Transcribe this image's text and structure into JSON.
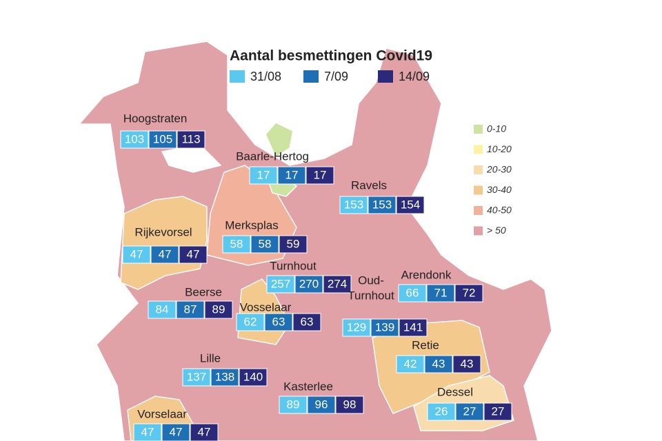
{
  "title": "Aantal besmettingen Covid19",
  "periods": [
    {
      "label": "31/08",
      "color": "#5bc8ef"
    },
    {
      "label": "7/09",
      "color": "#1f6fb5"
    },
    {
      "label": "14/09",
      "color": "#2b2a7a"
    }
  ],
  "classes": [
    {
      "label": "0-10",
      "color": "#cde3a1"
    },
    {
      "label": "10-20",
      "color": "#fcf3a0"
    },
    {
      "label": "20-30",
      "color": "#f9dcad"
    },
    {
      "label": "30-40",
      "color": "#f4c98e"
    },
    {
      "label": "40-50",
      "color": "#f1b19b"
    },
    {
      "label": "> 50",
      "color": "#e0a1a7"
    }
  ],
  "municipalities": [
    {
      "name_lines": [
        "Hoogstraten"
      ],
      "values": [
        103,
        105,
        113
      ]
    },
    {
      "name_lines": [
        "Baarle-Hertog"
      ],
      "values": [
        17,
        17,
        17
      ]
    },
    {
      "name_lines": [
        "Ravels"
      ],
      "values": [
        153,
        153,
        154
      ]
    },
    {
      "name_lines": [
        "Merksplas"
      ],
      "values": [
        58,
        58,
        59
      ]
    },
    {
      "name_lines": [
        "Rijkevorsel"
      ],
      "values": [
        47,
        47,
        47
      ]
    },
    {
      "name_lines": [
        "Turnhout"
      ],
      "values": [
        257,
        270,
        274
      ]
    },
    {
      "name_lines": [
        "Arendonk"
      ],
      "values": [
        66,
        71,
        72
      ]
    },
    {
      "name_lines": [
        "Beerse"
      ],
      "values": [
        84,
        87,
        89
      ]
    },
    {
      "name_lines": [
        "Vosselaar"
      ],
      "values": [
        62,
        63,
        63
      ]
    },
    {
      "name_lines": [
        "Oud-",
        "Turnhout"
      ],
      "values": [
        129,
        139,
        141
      ]
    },
    {
      "name_lines": [
        "Retie"
      ],
      "values": [
        42,
        43,
        43
      ]
    },
    {
      "name_lines": [
        "Lille"
      ],
      "values": [
        137,
        138,
        140
      ]
    },
    {
      "name_lines": [
        "Kasterlee"
      ],
      "values": [
        89,
        96,
        98
      ]
    },
    {
      "name_lines": [
        "Dessel"
      ],
      "values": [
        26,
        27,
        27
      ]
    },
    {
      "name_lines": [
        "Vorselaar"
      ],
      "values": [
        47,
        47,
        47
      ]
    }
  ]
}
